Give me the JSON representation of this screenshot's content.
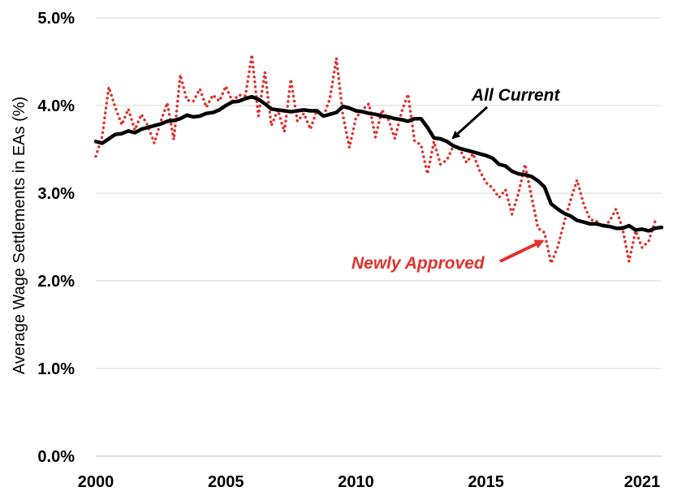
{
  "chart_data": {
    "type": "line",
    "title": "",
    "xlabel": "",
    "ylabel": "Average Wage Settlements in EAs (%)",
    "xlim": [
      2000,
      2021.75
    ],
    "ylim": [
      0,
      5
    ],
    "x_ticks": [
      2000,
      2005,
      2010,
      2015,
      2021
    ],
    "y_ticks": [
      {
        "value": 0,
        "label": "0.0%"
      },
      {
        "value": 1,
        "label": "1.0%"
      },
      {
        "value": 2,
        "label": "2.0%"
      },
      {
        "value": 3,
        "label": "3.0%"
      },
      {
        "value": 4,
        "label": "4.0%"
      },
      {
        "value": 5,
        "label": "5.0%"
      }
    ],
    "grid": "horizontal",
    "series": [
      {
        "name": "All Current",
        "color": "#000000",
        "style": "solid",
        "points": [
          [
            2000.0,
            3.59
          ],
          [
            2000.25,
            3.57
          ],
          [
            2000.5,
            3.62
          ],
          [
            2000.75,
            3.67
          ],
          [
            2001.0,
            3.68
          ],
          [
            2001.25,
            3.71
          ],
          [
            2001.5,
            3.69
          ],
          [
            2001.75,
            3.73
          ],
          [
            2002.0,
            3.75
          ],
          [
            2002.25,
            3.77
          ],
          [
            2002.5,
            3.79
          ],
          [
            2002.75,
            3.82
          ],
          [
            2003.0,
            3.83
          ],
          [
            2003.25,
            3.85
          ],
          [
            2003.5,
            3.89
          ],
          [
            2003.75,
            3.87
          ],
          [
            2004.0,
            3.88
          ],
          [
            2004.25,
            3.91
          ],
          [
            2004.5,
            3.92
          ],
          [
            2004.75,
            3.95
          ],
          [
            2005.0,
            4.0
          ],
          [
            2005.25,
            4.04
          ],
          [
            2005.5,
            4.05
          ],
          [
            2005.75,
            4.08
          ],
          [
            2006.0,
            4.1
          ],
          [
            2006.25,
            4.07
          ],
          [
            2006.5,
            4.02
          ],
          [
            2006.75,
            3.96
          ],
          [
            2007.0,
            3.95
          ],
          [
            2007.25,
            3.94
          ],
          [
            2007.5,
            3.93
          ],
          [
            2007.75,
            3.94
          ],
          [
            2008.0,
            3.95
          ],
          [
            2008.25,
            3.94
          ],
          [
            2008.5,
            3.94
          ],
          [
            2008.75,
            3.88
          ],
          [
            2009.0,
            3.9
          ],
          [
            2009.25,
            3.92
          ],
          [
            2009.5,
            3.99
          ],
          [
            2009.75,
            3.97
          ],
          [
            2010.0,
            3.94
          ],
          [
            2010.25,
            3.93
          ],
          [
            2010.5,
            3.91
          ],
          [
            2010.75,
            3.9
          ],
          [
            2011.0,
            3.88
          ],
          [
            2011.25,
            3.87
          ],
          [
            2011.5,
            3.85
          ],
          [
            2011.75,
            3.84
          ],
          [
            2012.0,
            3.82
          ],
          [
            2012.25,
            3.85
          ],
          [
            2012.5,
            3.85
          ],
          [
            2012.75,
            3.75
          ],
          [
            2013.0,
            3.63
          ],
          [
            2013.25,
            3.62
          ],
          [
            2013.5,
            3.59
          ],
          [
            2013.75,
            3.54
          ],
          [
            2014.0,
            3.51
          ],
          [
            2014.25,
            3.49
          ],
          [
            2014.5,
            3.47
          ],
          [
            2014.75,
            3.45
          ],
          [
            2015.0,
            3.43
          ],
          [
            2015.25,
            3.4
          ],
          [
            2015.5,
            3.33
          ],
          [
            2015.75,
            3.31
          ],
          [
            2016.0,
            3.25
          ],
          [
            2016.25,
            3.22
          ],
          [
            2016.5,
            3.21
          ],
          [
            2016.75,
            3.19
          ],
          [
            2017.0,
            3.14
          ],
          [
            2017.25,
            3.07
          ],
          [
            2017.5,
            2.88
          ],
          [
            2017.75,
            2.82
          ],
          [
            2018.0,
            2.77
          ],
          [
            2018.25,
            2.74
          ],
          [
            2018.5,
            2.69
          ],
          [
            2018.75,
            2.67
          ],
          [
            2019.0,
            2.65
          ],
          [
            2019.25,
            2.65
          ],
          [
            2019.5,
            2.63
          ],
          [
            2019.75,
            2.62
          ],
          [
            2020.0,
            2.6
          ],
          [
            2020.25,
            2.6
          ],
          [
            2020.5,
            2.63
          ],
          [
            2020.75,
            2.58
          ],
          [
            2021.0,
            2.59
          ],
          [
            2021.25,
            2.57
          ],
          [
            2021.5,
            2.6
          ],
          [
            2021.75,
            2.61
          ]
        ]
      },
      {
        "name": "Newly Approved",
        "color": "#e0322d",
        "style": "dotted",
        "points": [
          [
            2000.0,
            3.42
          ],
          [
            2000.25,
            3.65
          ],
          [
            2000.5,
            4.21
          ],
          [
            2000.75,
            3.98
          ],
          [
            2001.0,
            3.78
          ],
          [
            2001.25,
            3.96
          ],
          [
            2001.5,
            3.72
          ],
          [
            2001.75,
            3.9
          ],
          [
            2002.0,
            3.77
          ],
          [
            2002.25,
            3.57
          ],
          [
            2002.5,
            3.82
          ],
          [
            2002.75,
            4.03
          ],
          [
            2003.0,
            3.61
          ],
          [
            2003.25,
            4.35
          ],
          [
            2003.5,
            4.06
          ],
          [
            2003.75,
            4.05
          ],
          [
            2004.0,
            4.19
          ],
          [
            2004.25,
            3.98
          ],
          [
            2004.5,
            4.12
          ],
          [
            2004.75,
            4.05
          ],
          [
            2005.0,
            4.22
          ],
          [
            2005.25,
            4.05
          ],
          [
            2005.5,
            4.12
          ],
          [
            2005.75,
            4.11
          ],
          [
            2006.0,
            4.58
          ],
          [
            2006.25,
            3.88
          ],
          [
            2006.5,
            4.38
          ],
          [
            2006.75,
            3.77
          ],
          [
            2007.0,
            3.95
          ],
          [
            2007.25,
            3.7
          ],
          [
            2007.5,
            4.3
          ],
          [
            2007.75,
            3.82
          ],
          [
            2008.0,
            3.91
          ],
          [
            2008.25,
            3.73
          ],
          [
            2008.5,
            3.95
          ],
          [
            2008.75,
            3.87
          ],
          [
            2009.0,
            4.08
          ],
          [
            2009.25,
            4.54
          ],
          [
            2009.5,
            3.89
          ],
          [
            2009.75,
            3.52
          ],
          [
            2010.0,
            3.86
          ],
          [
            2010.25,
            3.95
          ],
          [
            2010.5,
            4.02
          ],
          [
            2010.75,
            3.64
          ],
          [
            2011.0,
            3.95
          ],
          [
            2011.25,
            3.84
          ],
          [
            2011.5,
            3.62
          ],
          [
            2011.75,
            3.92
          ],
          [
            2012.0,
            4.13
          ],
          [
            2012.25,
            3.6
          ],
          [
            2012.5,
            3.55
          ],
          [
            2012.75,
            3.22
          ],
          [
            2013.0,
            3.59
          ],
          [
            2013.25,
            3.33
          ],
          [
            2013.5,
            3.38
          ],
          [
            2013.75,
            3.54
          ],
          [
            2014.0,
            3.5
          ],
          [
            2014.25,
            3.35
          ],
          [
            2014.5,
            3.45
          ],
          [
            2014.75,
            3.26
          ],
          [
            2015.0,
            3.12
          ],
          [
            2015.25,
            3.06
          ],
          [
            2015.5,
            2.95
          ],
          [
            2015.75,
            3.04
          ],
          [
            2016.0,
            2.76
          ],
          [
            2016.25,
            3.0
          ],
          [
            2016.5,
            3.33
          ],
          [
            2016.75,
            2.96
          ],
          [
            2017.0,
            2.6
          ],
          [
            2017.25,
            2.55
          ],
          [
            2017.5,
            2.2
          ],
          [
            2017.75,
            2.38
          ],
          [
            2018.0,
            2.66
          ],
          [
            2018.25,
            2.92
          ],
          [
            2018.5,
            3.15
          ],
          [
            2018.75,
            2.88
          ],
          [
            2019.0,
            2.7
          ],
          [
            2019.25,
            2.68
          ],
          [
            2019.5,
            2.62
          ],
          [
            2019.75,
            2.68
          ],
          [
            2020.0,
            2.82
          ],
          [
            2020.25,
            2.6
          ],
          [
            2020.5,
            2.22
          ],
          [
            2020.75,
            2.57
          ],
          [
            2021.0,
            2.38
          ],
          [
            2021.25,
            2.45
          ],
          [
            2021.5,
            2.68
          ]
        ]
      }
    ],
    "annotations": [
      {
        "text": "All Current",
        "color": "#000000",
        "points_to_series": "All Current"
      },
      {
        "text": "Newly Approved",
        "color": "#e0322d",
        "points_to_series": "Newly Approved"
      }
    ]
  }
}
